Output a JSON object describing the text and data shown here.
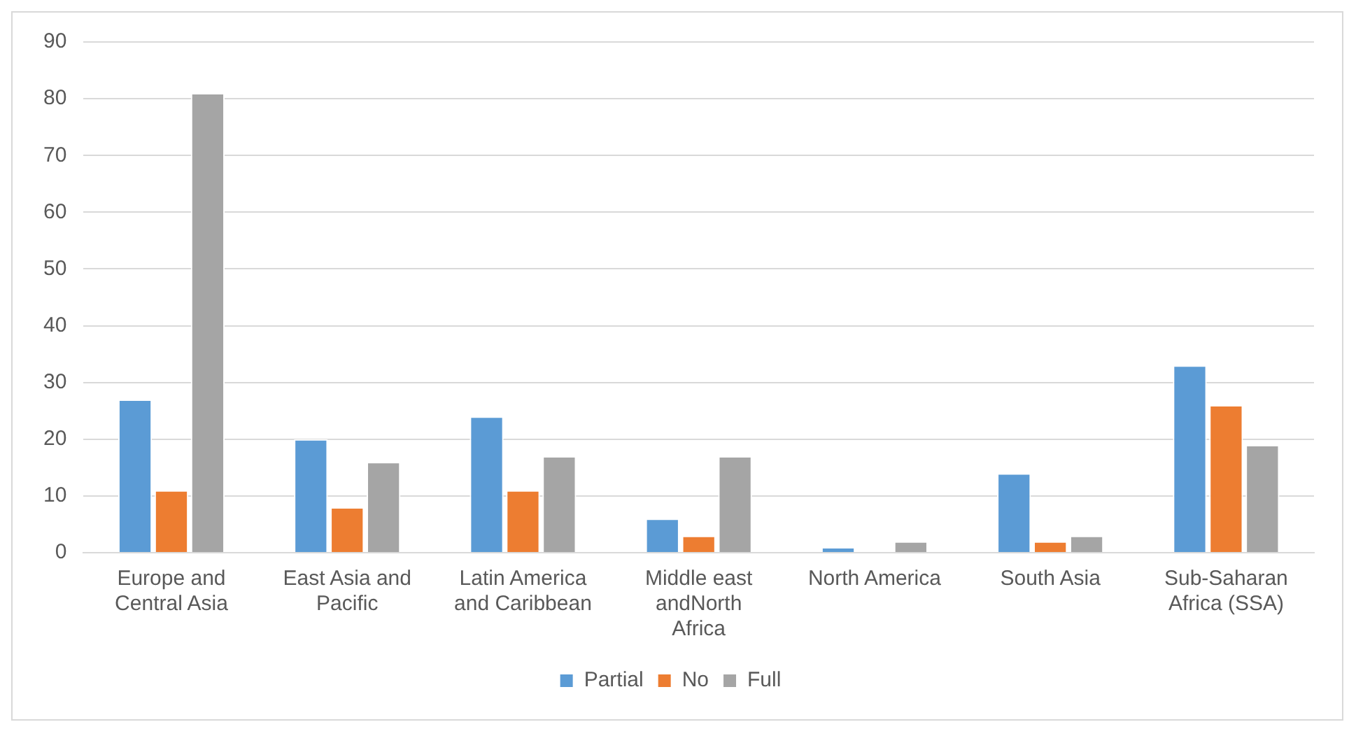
{
  "chart_data": {
    "type": "bar",
    "categories": [
      "Europe and Central Asia",
      "East Asia and Pacific",
      "Latin America and Caribbean",
      "Middle east andNorth Africa",
      "North America",
      "South Asia",
      "Sub-Saharan Africa (SSA)"
    ],
    "series": [
      {
        "name": "Partial",
        "color": "#5b9bd5",
        "values": [
          27,
          20,
          24,
          6,
          1,
          14,
          33
        ]
      },
      {
        "name": "No",
        "color": "#ed7d31",
        "values": [
          11,
          8,
          11,
          3,
          0,
          2,
          26
        ]
      },
      {
        "name": "Full",
        "color": "#a5a5a5",
        "values": [
          81,
          16,
          17,
          17,
          2,
          3,
          19
        ]
      }
    ],
    "ylim": [
      0,
      90
    ],
    "yticks": [
      0,
      10,
      20,
      30,
      40,
      50,
      60,
      70,
      80,
      90
    ],
    "grid": "y",
    "legend": "bottom"
  }
}
